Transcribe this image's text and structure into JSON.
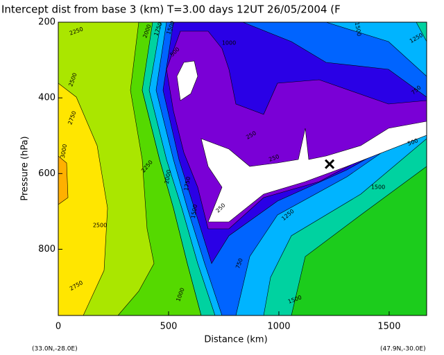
{
  "chart_data": {
    "type": "contour",
    "title": "Intercept dist from base 3 (km)    T=3.00 days  12UT 26/05/2004  (F",
    "x_label": "Distance  (km)",
    "y_label": "Pressure  (hPa)",
    "start_label": "(33.0N,-28.0E)",
    "end_label": "(47.9N,-30.0E)",
    "xlim": [
      0,
      1670
    ],
    "xticks": [
      0,
      500,
      1000,
      1500
    ],
    "ylim": [
      200,
      975
    ],
    "yticks": [
      200,
      400,
      600,
      800
    ],
    "y_inverted": true,
    "marker": {
      "x": 1230,
      "y": 575
    },
    "contour_labels": [
      "2250",
      "2000",
      "1750",
      "1500",
      "1000",
      "1500",
      "1250",
      "2500",
      "2750",
      "3000",
      "2250",
      "2000",
      "1750",
      "1500",
      "500",
      "250",
      "250",
      "250",
      "750",
      "1250",
      "1500",
      "2500",
      "2750",
      "1000",
      "750",
      "1500",
      "500"
    ]
  }
}
